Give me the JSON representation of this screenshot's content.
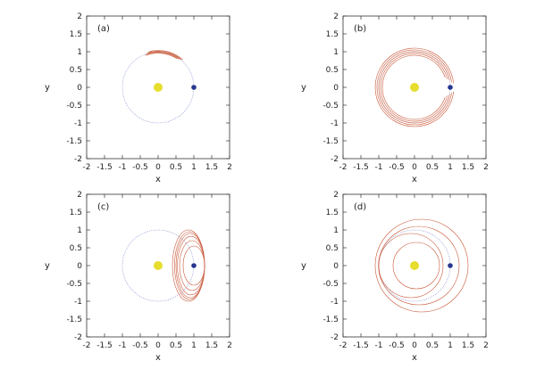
{
  "colors": {
    "orbit": "#6e7fc4",
    "trajectory": "#c9593a",
    "sun": "#e6dd2e",
    "planet": "#26378f",
    "frame": "#333333"
  },
  "chart_data": [
    {
      "type": "line",
      "panel": "(a)",
      "xlabel": "x",
      "ylabel": "y",
      "xlim": [
        -2,
        2
      ],
      "ylim": [
        -2,
        2
      ],
      "xticks": [
        "-2",
        "-1.5",
        "-1",
        "-0.5",
        "0",
        "0.5",
        "1",
        "1.5",
        "2"
      ],
      "yticks": [
        "2",
        "1.5",
        "1",
        "0.5",
        "0",
        "-0.5",
        "-1",
        "-1.5",
        "-2"
      ],
      "grid": false,
      "sun": {
        "x": 0,
        "y": 0
      },
      "planet": {
        "x": 1,
        "y": 0
      },
      "reference_orbit_radius": 1,
      "trajectories": [
        {
          "shape": "arc",
          "cx": 0,
          "cy": 0,
          "r": 1.0,
          "theta_start_deg": 52,
          "theta_end_deg": 108
        },
        {
          "shape": "arc",
          "cx": 0,
          "cy": 0,
          "r": 0.98,
          "theta_start_deg": 54,
          "theta_end_deg": 110
        },
        {
          "shape": "arc",
          "cx": 0,
          "cy": 0,
          "r": 1.02,
          "theta_start_deg": 50,
          "theta_end_deg": 106
        },
        {
          "shape": "arc",
          "cx": 0,
          "cy": 0,
          "r": 0.96,
          "theta_start_deg": 57,
          "theta_end_deg": 112
        },
        {
          "shape": "arc",
          "cx": 0,
          "cy": 0,
          "r": 1.04,
          "theta_start_deg": 48,
          "theta_end_deg": 104
        }
      ]
    },
    {
      "type": "line",
      "panel": "(b)",
      "xlabel": "x",
      "ylabel": "y",
      "xlim": [
        -2,
        2
      ],
      "ylim": [
        -2,
        2
      ],
      "xticks": [
        "-2",
        "-1.5",
        "-1",
        "-0.5",
        "0",
        "0.5",
        "1",
        "1.5",
        "2"
      ],
      "yticks": [
        "2",
        "1.5",
        "1",
        "0.5",
        "0",
        "-0.5",
        "-1",
        "-1.5",
        "-2"
      ],
      "grid": false,
      "sun": {
        "x": 0,
        "y": 0
      },
      "planet": {
        "x": 1,
        "y": 0
      },
      "reference_orbit_radius": 1,
      "trajectories": [
        {
          "shape": "arc",
          "cx": 0,
          "cy": 0,
          "r": 0.9,
          "theta_start_deg": 18,
          "theta_end_deg": 342
        },
        {
          "shape": "arc",
          "cx": 0,
          "cy": 0,
          "r": 0.95,
          "theta_start_deg": 14,
          "theta_end_deg": 346
        },
        {
          "shape": "arc",
          "cx": 0,
          "cy": 0,
          "r": 1.0,
          "theta_start_deg": 11,
          "theta_end_deg": 349
        },
        {
          "shape": "arc",
          "cx": 0,
          "cy": 0,
          "r": 1.05,
          "theta_start_deg": 8,
          "theta_end_deg": 352
        },
        {
          "shape": "arc",
          "cx": 0,
          "cy": 0,
          "r": 1.1,
          "theta_start_deg": 6,
          "theta_end_deg": 354
        }
      ]
    },
    {
      "type": "line",
      "panel": "(c)",
      "xlabel": "x",
      "ylabel": "y",
      "xlim": [
        -2,
        2
      ],
      "ylim": [
        -2,
        2
      ],
      "xticks": [
        "-2",
        "-1.5",
        "-1",
        "-0.5",
        "0",
        "0.5",
        "1",
        "1.5",
        "2"
      ],
      "yticks": [
        "2",
        "1.5",
        "1",
        "0.5",
        "0",
        "-0.5",
        "-1",
        "-1.5",
        "-2"
      ],
      "grid": false,
      "sun": {
        "x": 0,
        "y": 0
      },
      "planet": {
        "x": 1,
        "y": 0
      },
      "reference_orbit_radius": 1,
      "trajectories": [
        {
          "shape": "ellipse",
          "cx": 1.0,
          "cy": 0,
          "rx": 0.3,
          "ry": 0.55
        },
        {
          "shape": "ellipse",
          "cx": 0.95,
          "cy": 0,
          "rx": 0.35,
          "ry": 0.7
        },
        {
          "shape": "ellipse",
          "cx": 0.92,
          "cy": 0,
          "rx": 0.38,
          "ry": 0.82
        },
        {
          "shape": "ellipse",
          "cx": 0.9,
          "cy": 0,
          "rx": 0.4,
          "ry": 0.9
        },
        {
          "shape": "ellipse",
          "cx": 0.88,
          "cy": 0,
          "rx": 0.42,
          "ry": 0.95
        },
        {
          "shape": "ellipse",
          "cx": 0.85,
          "cy": 0,
          "rx": 0.45,
          "ry": 1.0
        }
      ]
    },
    {
      "type": "line",
      "panel": "(d)",
      "xlabel": "x",
      "ylabel": "y",
      "xlim": [
        -2,
        2
      ],
      "ylim": [
        -2,
        2
      ],
      "xticks": [
        "-2",
        "-1.5",
        "-1",
        "-0.5",
        "0",
        "0.5",
        "1",
        "1.5",
        "2"
      ],
      "yticks": [
        "2",
        "1.5",
        "1",
        "0.5",
        "0",
        "-0.5",
        "-1",
        "-1.5",
        "-2"
      ],
      "grid": false,
      "sun": {
        "x": 0,
        "y": 0
      },
      "planet": {
        "x": 1,
        "y": 0
      },
      "reference_orbit_radius": 1,
      "trajectories": [
        {
          "shape": "ellipse",
          "cx": 0.2,
          "cy": 0,
          "rx": 1.3,
          "ry": 1.3
        },
        {
          "shape": "ellipse",
          "cx": 0.12,
          "cy": 0,
          "rx": 1.13,
          "ry": 1.1
        },
        {
          "shape": "ellipse",
          "cx": -0.1,
          "cy": 0,
          "rx": 0.9,
          "ry": 0.9
        },
        {
          "shape": "ellipse",
          "cx": 0.05,
          "cy": 0,
          "rx": 0.65,
          "ry": 0.65
        }
      ]
    }
  ]
}
